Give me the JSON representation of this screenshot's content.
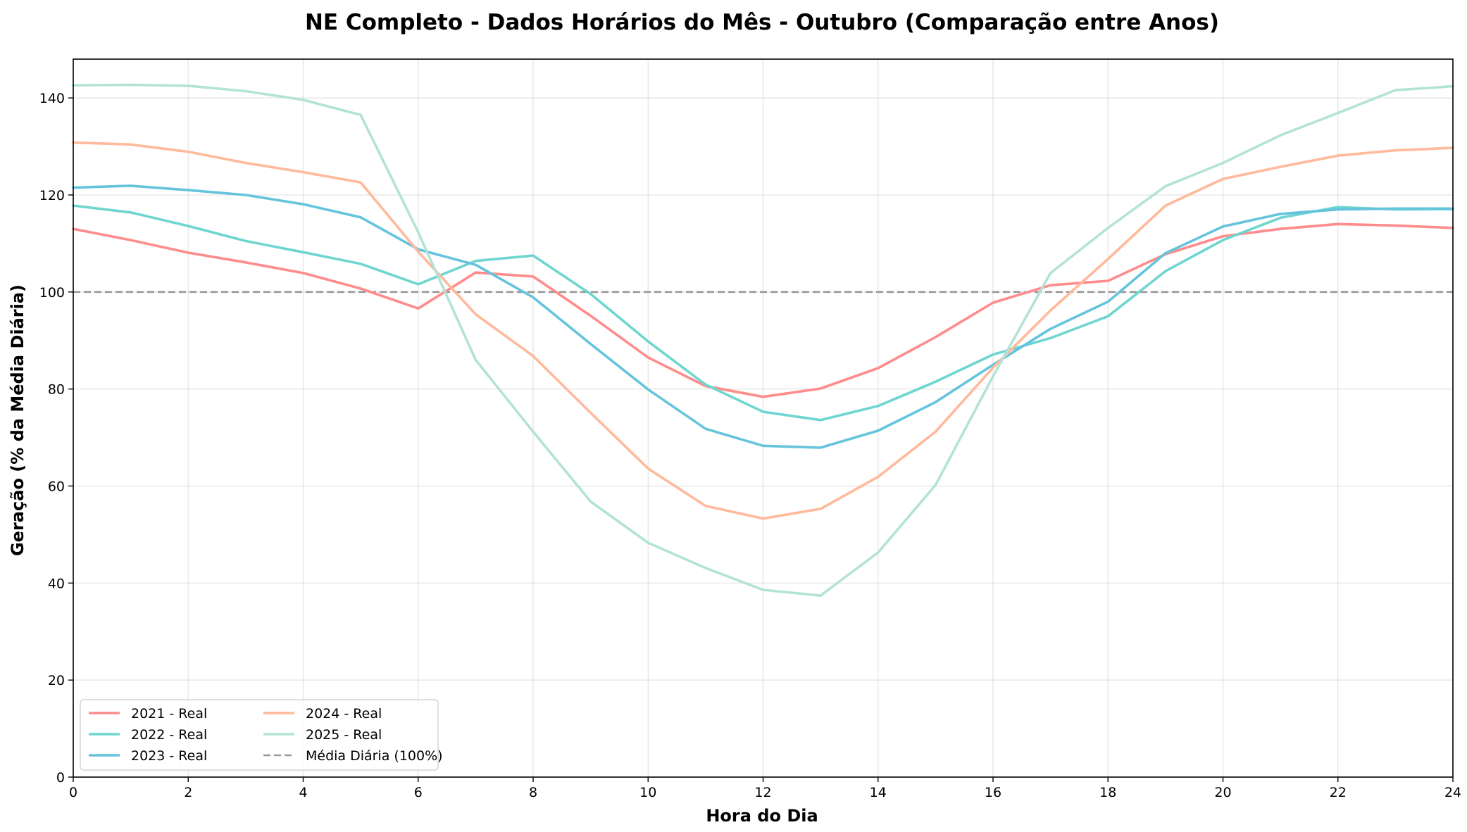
{
  "chart_data": {
    "type": "line",
    "title": "NE Completo - Dados Horários do Mês - Outubro (Comparação entre Anos)",
    "xlabel": "Hora do Dia",
    "ylabel": "Geração (% da Média Diária)",
    "xlim": [
      0,
      24
    ],
    "ylim": [
      0,
      148
    ],
    "xticks": [
      0,
      2,
      4,
      6,
      8,
      10,
      12,
      14,
      16,
      18,
      20,
      22,
      24
    ],
    "yticks": [
      0,
      20,
      40,
      60,
      80,
      100,
      120,
      140
    ],
    "grid": true,
    "legend_position": "lower-left",
    "legend_columns": 2,
    "x": [
      0,
      1,
      2,
      3,
      4,
      5,
      6,
      7,
      8,
      9,
      10,
      11,
      12,
      13,
      14,
      15,
      16,
      17,
      18,
      19,
      20,
      21,
      22,
      23,
      24
    ],
    "series": [
      {
        "name": "2021 - Real",
        "color": "#ff8c8c",
        "values": [
          113,
          110.7,
          108.1,
          106.1,
          103.9,
          100.7,
          96.6,
          104,
          103.2,
          95.1,
          86.5,
          80.6,
          78.4,
          80.1,
          84.3,
          90.7,
          97.8,
          101.4,
          102.3,
          107.8,
          111.5,
          113,
          114,
          113.7,
          113.2
        ]
      },
      {
        "name": "2022 - Real",
        "color": "#6ed6cf",
        "values": [
          117.8,
          116.4,
          113.6,
          110.5,
          108.2,
          105.8,
          101.6,
          106.4,
          107.5,
          99.6,
          89.8,
          80.9,
          75.3,
          73.6,
          76.5,
          81.5,
          87.1,
          90.5,
          95,
          104.3,
          110.7,
          115.3,
          117.5,
          117,
          117.1
        ]
      },
      {
        "name": "2023 - Real",
        "color": "#65c4dd",
        "values": [
          121.5,
          121.9,
          121,
          120,
          118.1,
          115.4,
          108.8,
          105.6,
          98.9,
          89.3,
          79.9,
          71.8,
          68.3,
          67.9,
          71.4,
          77.3,
          85,
          92.4,
          98,
          108,
          113.5,
          116.1,
          117,
          117.2,
          117.2
        ]
      },
      {
        "name": "2024 - Real",
        "color": "#ffb99b",
        "values": [
          130.8,
          130.4,
          128.9,
          126.6,
          124.7,
          122.6,
          108.3,
          95.4,
          86.8,
          75.1,
          63.6,
          55.9,
          53.3,
          55.3,
          61.9,
          71.2,
          84.4,
          96.2,
          106.8,
          117.8,
          123.3,
          125.8,
          128.1,
          129.2,
          129.7
        ]
      },
      {
        "name": "2025 - Real",
        "color": "#b3e3d6",
        "values": [
          142.6,
          142.7,
          142.5,
          141.4,
          139.6,
          136.5,
          112.3,
          86,
          71.2,
          56.8,
          48.3,
          43.1,
          38.6,
          37.4,
          46.3,
          60.2,
          82.6,
          103.9,
          113.2,
          121.8,
          126.6,
          132.3,
          136.9,
          141.6,
          142.4
        ]
      }
    ],
    "reference_line": {
      "name": "Média Diária (100%)",
      "value": 100,
      "color": "#999999",
      "style": "dashed"
    }
  }
}
